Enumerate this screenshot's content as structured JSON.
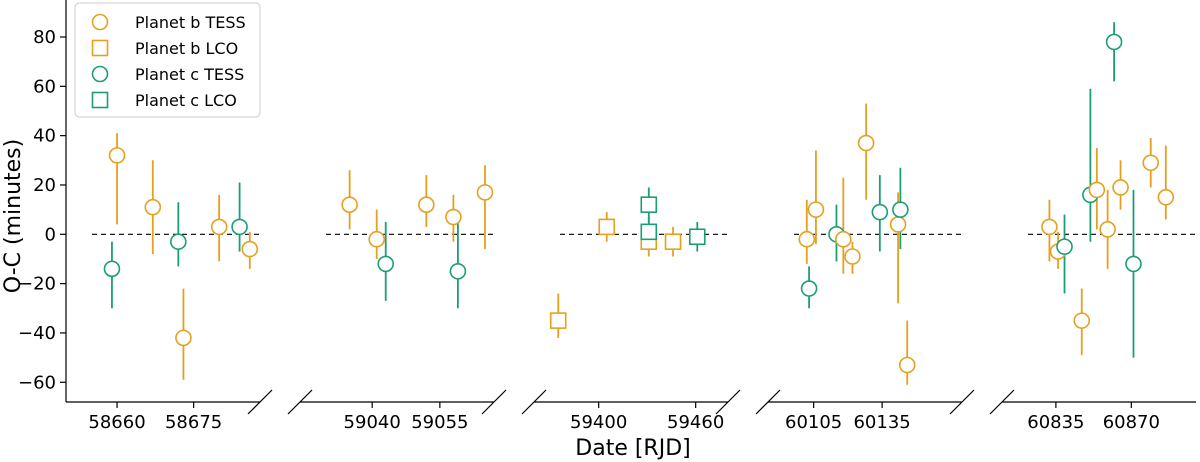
{
  "chart_data": {
    "type": "scatter",
    "xlabel": "Date [RJD]",
    "ylabel": "O-C (minutes)",
    "ylim": [
      -68,
      95
    ],
    "yticks": [
      -60,
      -40,
      -20,
      0,
      20,
      40,
      60,
      80
    ],
    "colors": {
      "planet_b": "#E6A020",
      "planet_c": "#1A9E77"
    },
    "legend": {
      "location": "upper-left",
      "entries": [
        {
          "label": "Planet b TESS",
          "planet": "b",
          "marker": "circle"
        },
        {
          "label": "Planet b LCO",
          "planet": "b",
          "marker": "square"
        },
        {
          "label": "Planet c TESS",
          "planet": "c",
          "marker": "circle"
        },
        {
          "label": "Planet c LCO",
          "planet": "c",
          "marker": "square"
        }
      ]
    },
    "panels": [
      {
        "xlim": [
          58650,
          58688
        ],
        "xticks": [
          58660,
          58675
        ],
        "points": [
          {
            "planet": "b",
            "inst": "TESS",
            "x": 58660,
            "y": 32,
            "err": [
              28,
              9
            ]
          },
          {
            "planet": "c",
            "inst": "TESS",
            "x": 58659,
            "y": -14,
            "err": [
              16,
              11
            ]
          },
          {
            "planet": "b",
            "inst": "TESS",
            "x": 58667,
            "y": 11,
            "err": [
              19,
              19
            ]
          },
          {
            "planet": "c",
            "inst": "TESS",
            "x": 58672,
            "y": -3,
            "err": [
              10,
              16
            ]
          },
          {
            "planet": "b",
            "inst": "TESS",
            "x": 58673,
            "y": -42,
            "err": [
              17,
              20
            ]
          },
          {
            "planet": "b",
            "inst": "TESS",
            "x": 58680,
            "y": 3,
            "err": [
              14,
              13
            ]
          },
          {
            "planet": "c",
            "inst": "TESS",
            "x": 58684,
            "y": 3,
            "err": [
              10,
              18
            ]
          },
          {
            "planet": "b",
            "inst": "TESS",
            "x": 58686,
            "y": -6,
            "err": [
              8,
              7
            ]
          }
        ]
      },
      {
        "xlim": [
          59024,
          59067
        ],
        "xticks": [
          59040,
          59055
        ],
        "points": [
          {
            "planet": "b",
            "inst": "TESS",
            "x": 59035,
            "y": 12,
            "err": [
              10,
              14
            ]
          },
          {
            "planet": "b",
            "inst": "TESS",
            "x": 59041,
            "y": -2,
            "err": [
              8,
              12
            ]
          },
          {
            "planet": "c",
            "inst": "TESS",
            "x": 59043,
            "y": -12,
            "err": [
              15,
              17
            ]
          },
          {
            "planet": "b",
            "inst": "TESS",
            "x": 59052,
            "y": 12,
            "err": [
              9,
              12
            ]
          },
          {
            "planet": "b",
            "inst": "TESS",
            "x": 59058,
            "y": 7,
            "err": [
              10,
              9
            ]
          },
          {
            "planet": "c",
            "inst": "TESS",
            "x": 59059,
            "y": -15,
            "err": [
              15,
              24
            ]
          },
          {
            "planet": "b",
            "inst": "TESS",
            "x": 59065,
            "y": 17,
            "err": [
              23,
              11
            ]
          }
        ]
      },
      {
        "xlim": [
          59360,
          59480
        ],
        "xticks": [
          59400,
          59460
        ],
        "points": [
          {
            "planet": "b",
            "inst": "LCO",
            "x": 59375,
            "y": -35,
            "err": [
              7,
              11
            ]
          },
          {
            "planet": "b",
            "inst": "LCO",
            "x": 59405,
            "y": 3,
            "err": [
              6,
              6
            ]
          },
          {
            "planet": "b",
            "inst": "LCO",
            "x": 59431,
            "y": -3,
            "err": [
              6,
              6
            ]
          },
          {
            "planet": "c",
            "inst": "LCO",
            "x": 59431,
            "y": 12,
            "err": [
              7,
              7
            ]
          },
          {
            "planet": "c",
            "inst": "LCO",
            "x": 59431,
            "y": 1,
            "err": [
              6,
              6
            ]
          },
          {
            "planet": "b",
            "inst": "LCO",
            "x": 59446,
            "y": -3,
            "err": [
              6,
              6
            ]
          },
          {
            "planet": "c",
            "inst": "LCO",
            "x": 59461,
            "y": -1,
            "err": [
              6,
              6
            ]
          }
        ]
      },
      {
        "xlim": [
          60085,
          60170
        ],
        "xticks": [
          60105,
          60135
        ],
        "points": [
          {
            "planet": "b",
            "inst": "TESS",
            "x": 60102,
            "y": -2,
            "err": [
              10,
              16
            ]
          },
          {
            "planet": "c",
            "inst": "TESS",
            "x": 60103,
            "y": -22,
            "err": [
              8,
              9
            ]
          },
          {
            "planet": "b",
            "inst": "TESS",
            "x": 60106,
            "y": 10,
            "err": [
              14,
              24
            ]
          },
          {
            "planet": "c",
            "inst": "TESS",
            "x": 60115,
            "y": 0,
            "err": [
              11,
              12
            ]
          },
          {
            "planet": "b",
            "inst": "TESS",
            "x": 60118,
            "y": -2,
            "err": [
              14,
              25
            ]
          },
          {
            "planet": "b",
            "inst": "TESS",
            "x": 60122,
            "y": -9,
            "err": [
              7,
              6
            ]
          },
          {
            "planet": "b",
            "inst": "TESS",
            "x": 60128,
            "y": 37,
            "err": [
              23,
              16
            ]
          },
          {
            "planet": "c",
            "inst": "TESS",
            "x": 60134,
            "y": 9,
            "err": [
              16,
              15
            ]
          },
          {
            "planet": "b",
            "inst": "TESS",
            "x": 60142,
            "y": 4,
            "err": [
              32,
              13
            ]
          },
          {
            "planet": "c",
            "inst": "TESS",
            "x": 60143,
            "y": 10,
            "err": [
              16,
              17
            ]
          },
          {
            "planet": "b",
            "inst": "TESS",
            "x": 60146,
            "y": -53,
            "err": [
              8,
              18
            ]
          }
        ]
      },
      {
        "xlim": [
          60810,
          60900
        ],
        "xticks": [
          60835,
          60870
        ],
        "points": [
          {
            "planet": "b",
            "inst": "TESS",
            "x": 60832,
            "y": 3,
            "err": [
              14,
              11
            ]
          },
          {
            "planet": "b",
            "inst": "TESS",
            "x": 60836,
            "y": -7,
            "err": [
              7,
              8
            ]
          },
          {
            "planet": "c",
            "inst": "TESS",
            "x": 60839,
            "y": -5,
            "err": [
              19,
              13
            ]
          },
          {
            "planet": "b",
            "inst": "TESS",
            "x": 60847,
            "y": -35,
            "err": [
              14,
              13
            ]
          },
          {
            "planet": "c",
            "inst": "TESS",
            "x": 60851,
            "y": 16,
            "err": [
              19,
              43
            ]
          },
          {
            "planet": "b",
            "inst": "TESS",
            "x": 60854,
            "y": 18,
            "err": [
              16,
              17
            ]
          },
          {
            "planet": "b",
            "inst": "TESS",
            "x": 60859,
            "y": 2,
            "err": [
              16,
              16
            ]
          },
          {
            "planet": "c",
            "inst": "TESS",
            "x": 60862,
            "y": 78,
            "err": [
              16,
              8
            ]
          },
          {
            "planet": "b",
            "inst": "TESS",
            "x": 60865,
            "y": 19,
            "err": [
              9,
              11
            ]
          },
          {
            "planet": "c",
            "inst": "TESS",
            "x": 60871,
            "y": -12,
            "err": [
              38,
              30
            ]
          },
          {
            "planet": "b",
            "inst": "TESS",
            "x": 60879,
            "y": 29,
            "err": [
              10,
              10
            ]
          },
          {
            "planet": "b",
            "inst": "TESS",
            "x": 60886,
            "y": 15,
            "err": [
              9,
              21
            ]
          }
        ]
      }
    ]
  }
}
